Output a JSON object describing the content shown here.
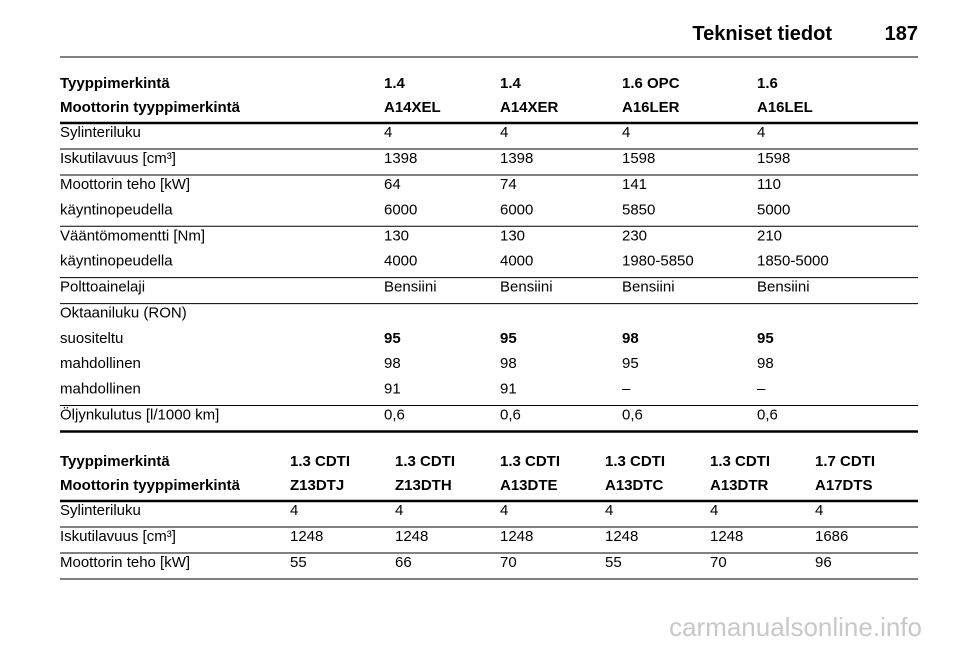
{
  "header": {
    "title": "Tekniset tiedot",
    "page": "187"
  },
  "tables": [
    {
      "header": [
        [
          "Tyyppimerkintä",
          "1.4",
          "1.4",
          "1.6 OPC",
          "1.6"
        ],
        [
          "Moottorin tyyppimerkintä",
          "A14XEL",
          "A14XER",
          "A16LER",
          "A16LEL"
        ]
      ],
      "groups": [
        [
          {
            "label": "Sylinteriluku",
            "values": [
              "4",
              "4",
              "4",
              "4"
            ]
          }
        ],
        [
          {
            "label": "Iskutilavuus [cm³]",
            "values": [
              "1398",
              "1398",
              "1598",
              "1598"
            ]
          }
        ],
        [
          {
            "label": "Moottorin teho [kW]",
            "values": [
              "64",
              "74",
              "141",
              "110"
            ]
          },
          {
            "label": "käyntinopeudella",
            "values": [
              "6000",
              "6000",
              "5850",
              "5000"
            ]
          }
        ],
        [
          {
            "label": "Vääntömomentti [Nm]",
            "values": [
              "130",
              "130",
              "230",
              "210"
            ]
          },
          {
            "label": "käyntinopeudella",
            "values": [
              "4000",
              "4000",
              "1980-5850",
              "1850-5000"
            ]
          }
        ],
        [
          {
            "label": "Polttoainelaji",
            "values": [
              "Bensiini",
              "Bensiini",
              "Bensiini",
              "Bensiini"
            ]
          }
        ],
        [
          {
            "label": "Oktaaniluku (RON)",
            "values": []
          },
          {
            "label": "suositeltu",
            "values": [
              "95",
              "95",
              "98",
              "95"
            ],
            "bold": true
          },
          {
            "label": "mahdollinen",
            "values": [
              "98",
              "98",
              "95",
              "98"
            ]
          },
          {
            "label": "mahdollinen",
            "values": [
              "91",
              "91",
              "–",
              "–"
            ]
          }
        ],
        [
          {
            "label": "Öljynkulutus [l/1000 km]",
            "values": [
              "0,6",
              "0,6",
              "0,6",
              "0,6"
            ]
          }
        ]
      ]
    },
    {
      "header": [
        [
          "Tyyppimerkintä",
          "1.3 CDTI",
          "1.3 CDTI",
          "1.3 CDTI",
          "1.3 CDTI",
          "1.3 CDTI",
          "1.7 CDTI"
        ],
        [
          "Moottorin tyyppimerkintä",
          "Z13DTJ",
          "Z13DTH",
          "A13DTE",
          "A13DTC",
          "A13DTR",
          "A17DTS"
        ]
      ],
      "groups": [
        [
          {
            "label": "Sylinteriluku",
            "values": [
              "4",
              "4",
              "4",
              "4",
              "4",
              "4"
            ]
          }
        ],
        [
          {
            "label": "Iskutilavuus [cm³]",
            "values": [
              "1248",
              "1248",
              "1248",
              "1248",
              "1248",
              "1686"
            ]
          }
        ],
        [
          {
            "label": "Moottorin teho [kW]",
            "values": [
              "55",
              "66",
              "70",
              "55",
              "70",
              "96"
            ]
          }
        ]
      ]
    }
  ],
  "watermark": "carmanualsonline.info"
}
